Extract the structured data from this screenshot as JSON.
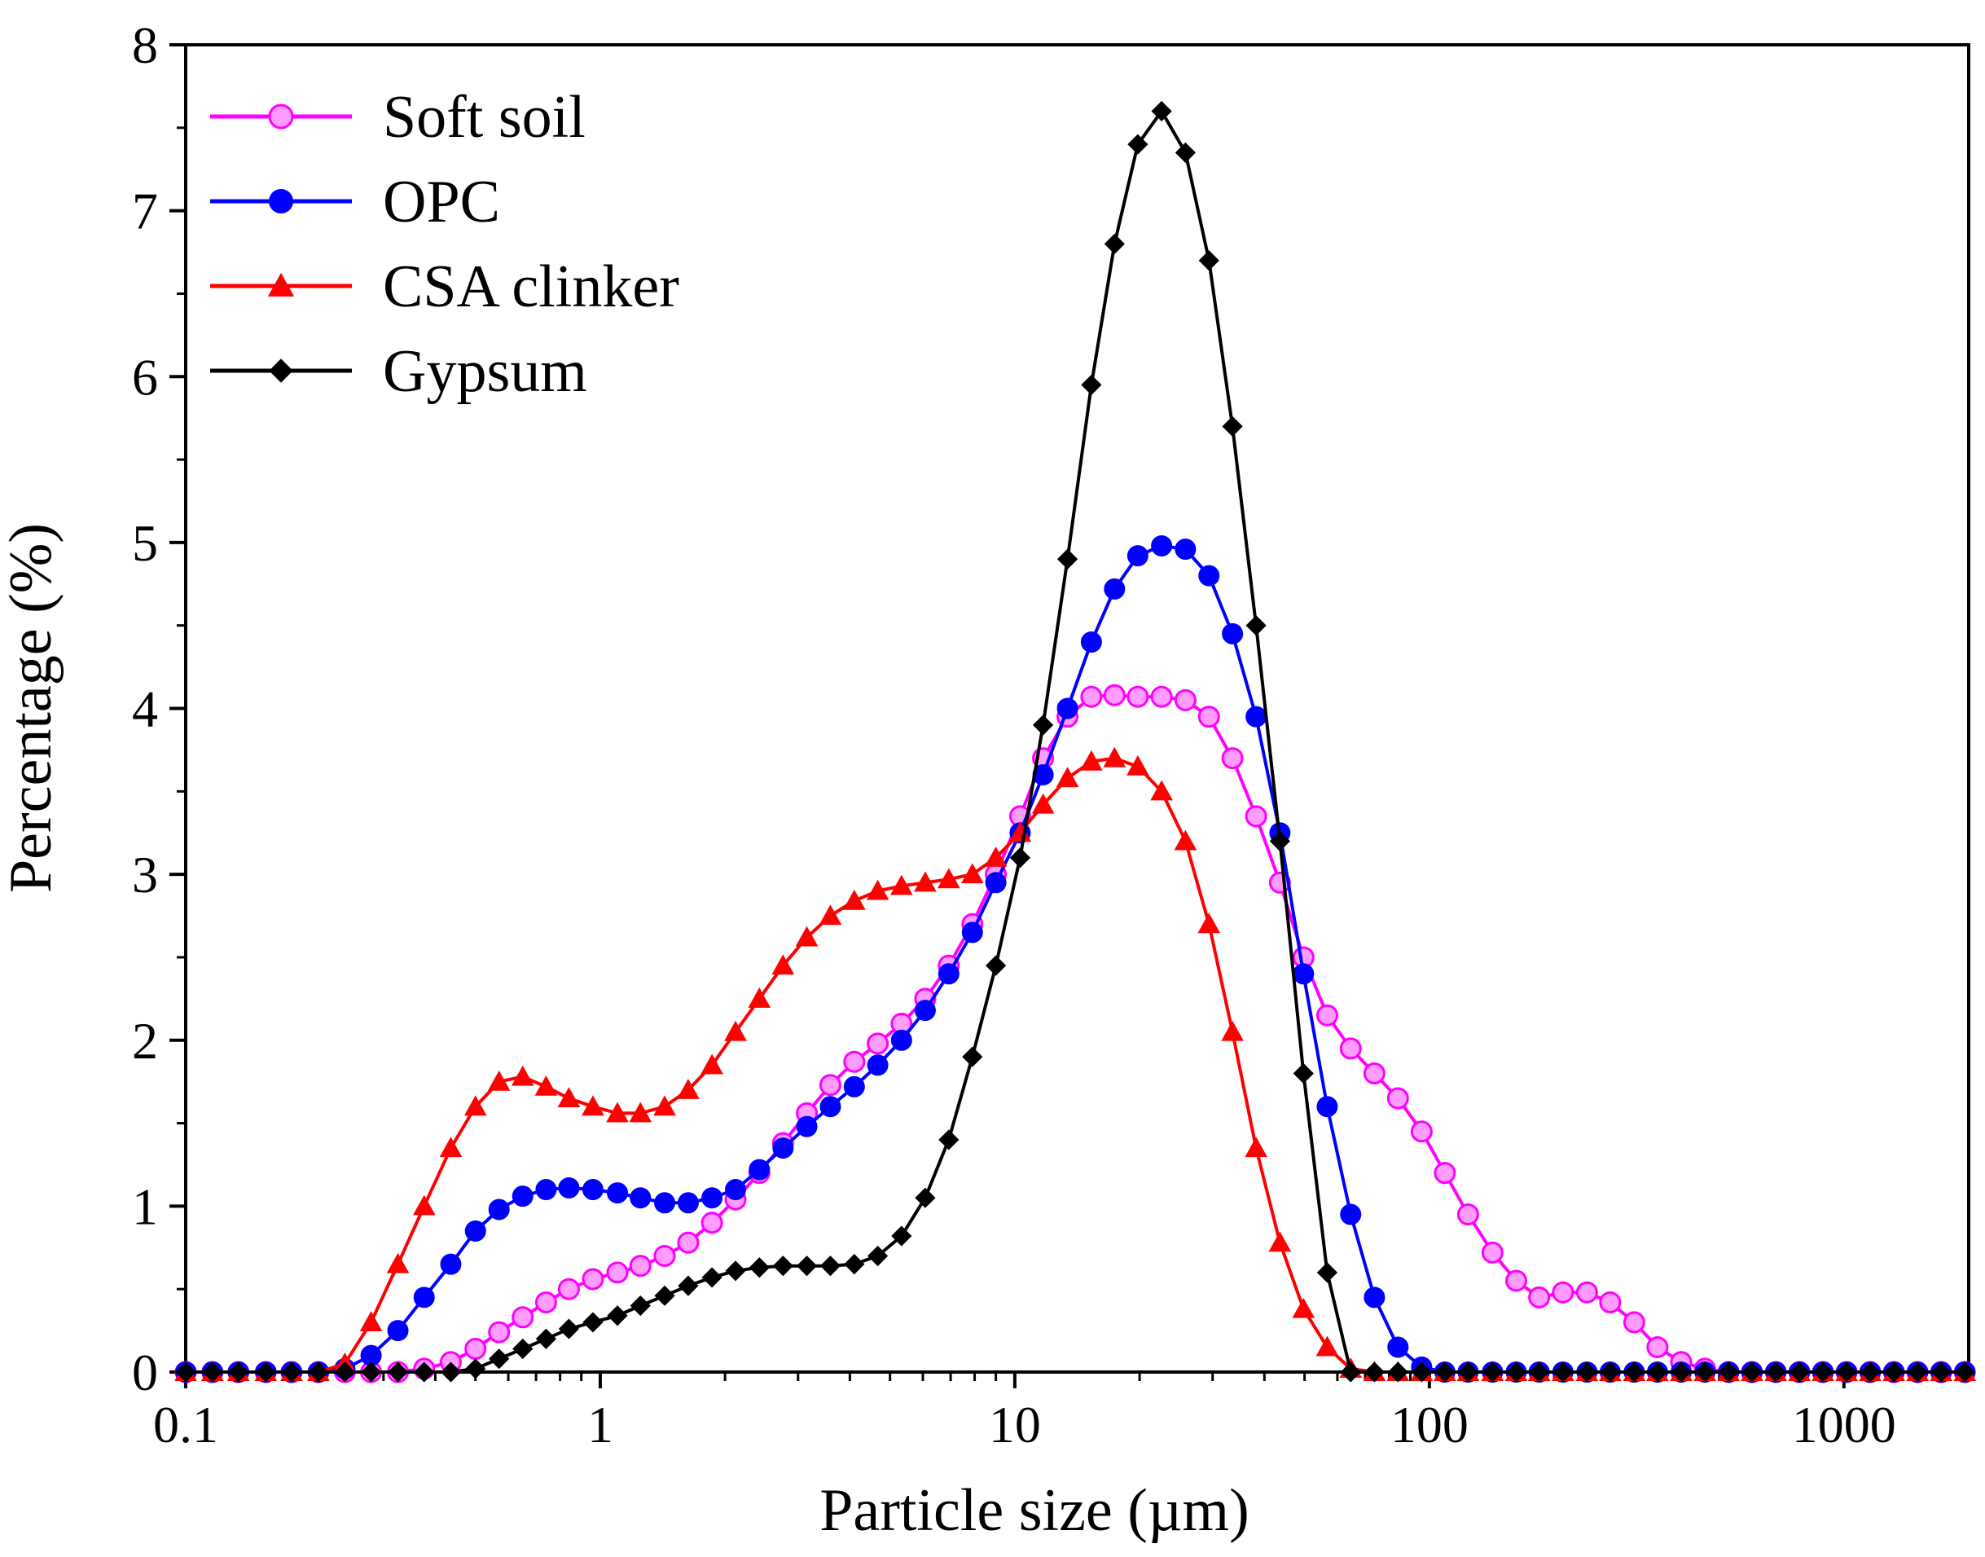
{
  "chart_data": {
    "type": "line",
    "xscale": "log",
    "xlabel": "Particle size (µm)",
    "ylabel": "Percentage (%)",
    "xlim": [
      0.1,
      2000
    ],
    "ylim": [
      0,
      8
    ],
    "grid": false,
    "legend_position": "top-left",
    "xticks": [
      {
        "value": 0.1,
        "label": "0.1"
      },
      {
        "value": 1,
        "label": "1"
      },
      {
        "value": 10,
        "label": "10"
      },
      {
        "value": 100,
        "label": "100"
      },
      {
        "value": 1000,
        "label": "1000"
      }
    ],
    "yticks": [
      {
        "value": 0,
        "label": "0"
      },
      {
        "value": 1,
        "label": "1"
      },
      {
        "value": 2,
        "label": "2"
      },
      {
        "value": 3,
        "label": "3"
      },
      {
        "value": 4,
        "label": "4"
      },
      {
        "value": 5,
        "label": "5"
      },
      {
        "value": 6,
        "label": "6"
      },
      {
        "value": 7,
        "label": "7"
      },
      {
        "value": 8,
        "label": "8"
      }
    ],
    "series": [
      {
        "name": "Soft soil",
        "color": "#ff00ff",
        "marker": "circle-hollow",
        "x": [
          0.1,
          0.116,
          0.134,
          0.156,
          0.18,
          0.209,
          0.242,
          0.28,
          0.325,
          0.376,
          0.436,
          0.5,
          0.57,
          0.65,
          0.74,
          0.84,
          0.96,
          1.1,
          1.25,
          1.43,
          1.63,
          1.86,
          2.12,
          2.42,
          2.76,
          3.15,
          3.59,
          4.1,
          4.67,
          5.33,
          6.08,
          6.93,
          7.9,
          9.0,
          10.3,
          11.7,
          13.4,
          15.3,
          17.4,
          19.8,
          22.6,
          25.8,
          29.4,
          33.5,
          38.2,
          43.6,
          49.7,
          56.7,
          64.6,
          73.7,
          84.0,
          95.8,
          109,
          124,
          142,
          162,
          184,
          210,
          240,
          273,
          312,
          355,
          405,
          462,
          527,
          600,
          685,
          781,
          890,
          1015,
          1157,
          1320,
          1505,
          1716,
          1957
        ],
        "y": [
          0,
          0,
          0,
          0,
          0,
          0,
          0,
          0,
          0,
          0.02,
          0.06,
          0.14,
          0.24,
          0.33,
          0.42,
          0.5,
          0.56,
          0.6,
          0.64,
          0.7,
          0.78,
          0.9,
          1.04,
          1.2,
          1.38,
          1.56,
          1.73,
          1.87,
          1.98,
          2.1,
          2.25,
          2.45,
          2.7,
          3.0,
          3.35,
          3.7,
          3.95,
          4.07,
          4.08,
          4.07,
          4.07,
          4.05,
          3.95,
          3.7,
          3.35,
          2.95,
          2.5,
          2.15,
          1.95,
          1.8,
          1.65,
          1.45,
          1.2,
          0.95,
          0.72,
          0.55,
          0.45,
          0.48,
          0.48,
          0.42,
          0.3,
          0.15,
          0.06,
          0.02,
          0,
          0,
          0,
          0,
          0,
          0,
          0,
          0,
          0,
          0,
          0
        ]
      },
      {
        "name": "OPC",
        "color": "#0000ff",
        "marker": "circle",
        "x": [
          0.1,
          0.116,
          0.134,
          0.156,
          0.18,
          0.209,
          0.242,
          0.28,
          0.325,
          0.376,
          0.436,
          0.5,
          0.57,
          0.65,
          0.74,
          0.84,
          0.96,
          1.1,
          1.25,
          1.43,
          1.63,
          1.86,
          2.12,
          2.42,
          2.76,
          3.15,
          3.59,
          4.1,
          4.67,
          5.33,
          6.08,
          6.93,
          7.9,
          9.0,
          10.3,
          11.7,
          13.4,
          15.3,
          17.4,
          19.8,
          22.6,
          25.8,
          29.4,
          33.5,
          38.2,
          43.6,
          49.7,
          56.7,
          64.6,
          73.7,
          84.0,
          95.8,
          109,
          124,
          142,
          162,
          184,
          210,
          240,
          273,
          312,
          355,
          405,
          462,
          527,
          600,
          685,
          781,
          890,
          1015,
          1157,
          1320,
          1505,
          1716,
          1957
        ],
        "y": [
          0,
          0,
          0,
          0,
          0,
          0,
          0.02,
          0.1,
          0.25,
          0.45,
          0.65,
          0.85,
          0.98,
          1.06,
          1.1,
          1.11,
          1.1,
          1.08,
          1.05,
          1.02,
          1.02,
          1.05,
          1.1,
          1.22,
          1.35,
          1.48,
          1.6,
          1.72,
          1.85,
          2.0,
          2.18,
          2.4,
          2.65,
          2.95,
          3.25,
          3.6,
          4.0,
          4.4,
          4.72,
          4.92,
          4.98,
          4.96,
          4.8,
          4.45,
          3.95,
          3.25,
          2.4,
          1.6,
          0.95,
          0.45,
          0.15,
          0.03,
          0,
          0,
          0,
          0,
          0,
          0,
          0,
          0,
          0,
          0,
          0,
          0,
          0,
          0,
          0,
          0,
          0,
          0,
          0,
          0,
          0,
          0,
          0
        ]
      },
      {
        "name": "CSA clinker",
        "color": "#ff0000",
        "marker": "triangle",
        "x": [
          0.1,
          0.116,
          0.134,
          0.156,
          0.18,
          0.209,
          0.242,
          0.28,
          0.325,
          0.376,
          0.436,
          0.5,
          0.57,
          0.65,
          0.74,
          0.84,
          0.96,
          1.1,
          1.25,
          1.43,
          1.63,
          1.86,
          2.12,
          2.42,
          2.76,
          3.15,
          3.59,
          4.1,
          4.67,
          5.33,
          6.08,
          6.93,
          7.9,
          9.0,
          10.3,
          11.7,
          13.4,
          15.3,
          17.4,
          19.8,
          22.6,
          25.8,
          29.4,
          33.5,
          38.2,
          43.6,
          49.7,
          56.7,
          64.6,
          73.7,
          84.0,
          95.8,
          109,
          124,
          142,
          162,
          184,
          210,
          240,
          273,
          312,
          355,
          405,
          462,
          527,
          600,
          685,
          781,
          890,
          1015,
          1157,
          1320,
          1505,
          1716,
          1957
        ],
        "y": [
          0,
          0,
          0,
          0,
          0,
          0,
          0.05,
          0.3,
          0.65,
          1.0,
          1.35,
          1.6,
          1.75,
          1.78,
          1.72,
          1.65,
          1.6,
          1.56,
          1.56,
          1.6,
          1.7,
          1.85,
          2.05,
          2.25,
          2.45,
          2.62,
          2.75,
          2.84,
          2.9,
          2.93,
          2.95,
          2.97,
          3.0,
          3.1,
          3.25,
          3.42,
          3.58,
          3.68,
          3.7,
          3.65,
          3.5,
          3.2,
          2.7,
          2.05,
          1.35,
          0.78,
          0.38,
          0.15,
          0.02,
          0,
          0,
          0,
          0,
          0,
          0,
          0,
          0,
          0,
          0,
          0,
          0,
          0,
          0,
          0,
          0,
          0,
          0,
          0,
          0,
          0,
          0,
          0,
          0,
          0,
          0
        ]
      },
      {
        "name": "Gypsum",
        "color": "#000000",
        "marker": "diamond",
        "x": [
          0.1,
          0.116,
          0.134,
          0.156,
          0.18,
          0.209,
          0.242,
          0.28,
          0.325,
          0.376,
          0.436,
          0.5,
          0.57,
          0.65,
          0.74,
          0.84,
          0.96,
          1.1,
          1.25,
          1.43,
          1.63,
          1.86,
          2.12,
          2.42,
          2.76,
          3.15,
          3.59,
          4.1,
          4.67,
          5.33,
          6.08,
          6.93,
          7.9,
          9.0,
          10.3,
          11.7,
          13.4,
          15.3,
          17.4,
          19.8,
          22.6,
          25.8,
          29.4,
          33.5,
          38.2,
          43.6,
          49.7,
          56.7,
          64.6,
          73.7,
          84.0,
          95.8,
          109,
          124,
          142,
          162,
          184,
          210,
          240,
          273,
          312,
          355,
          405,
          462,
          527,
          600,
          685,
          781,
          890,
          1015,
          1157,
          1320,
          1505,
          1716,
          1957
        ],
        "y": [
          0,
          0,
          0,
          0,
          0,
          0,
          0,
          0,
          0,
          0,
          0,
          0.02,
          0.08,
          0.14,
          0.2,
          0.26,
          0.3,
          0.34,
          0.4,
          0.46,
          0.52,
          0.57,
          0.61,
          0.63,
          0.64,
          0.64,
          0.64,
          0.65,
          0.7,
          0.82,
          1.05,
          1.4,
          1.9,
          2.45,
          3.1,
          3.9,
          4.9,
          5.95,
          6.8,
          7.4,
          7.6,
          7.35,
          6.7,
          5.7,
          4.5,
          3.2,
          1.8,
          0.6,
          0,
          0,
          0,
          0,
          0,
          0,
          0,
          0,
          0,
          0,
          0,
          0,
          0,
          0,
          0,
          0,
          0,
          0,
          0,
          0,
          0,
          0,
          0,
          0,
          0,
          0,
          0
        ]
      }
    ]
  }
}
